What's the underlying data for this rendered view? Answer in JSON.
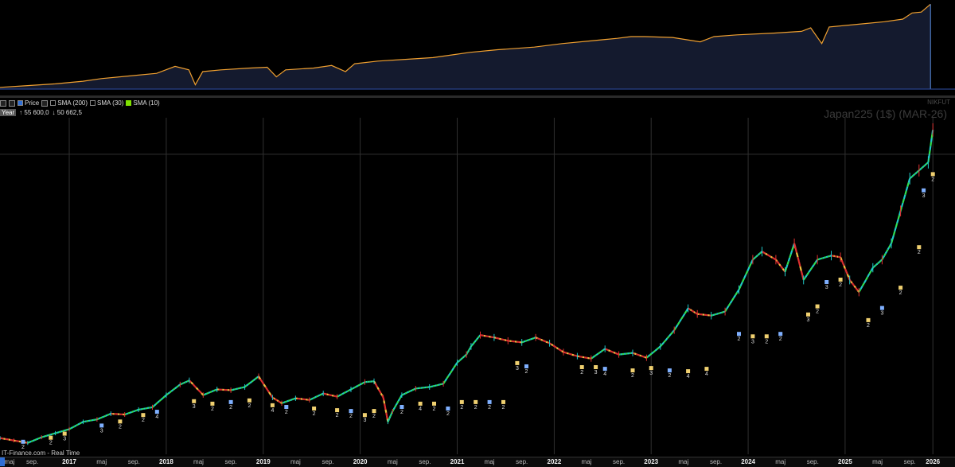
{
  "chart_data": [
    {
      "type": "area",
      "title": "",
      "xlabel": "",
      "ylabel": "",
      "grid": false,
      "colors": {
        "line": "#f0a030",
        "line_alt": "#5a8ee0",
        "fill": "#141a2e",
        "baseline": "#2f4fa8"
      },
      "x_range": [
        2016.0,
        2026.15
      ],
      "y_range": [
        0,
        1
      ],
      "points": [
        [
          2016.0,
          0.02
        ],
        [
          2016.3,
          0.04
        ],
        [
          2016.6,
          0.06
        ],
        [
          2016.9,
          0.09
        ],
        [
          2017.1,
          0.12
        ],
        [
          2017.4,
          0.15
        ],
        [
          2017.7,
          0.18
        ],
        [
          2017.9,
          0.26
        ],
        [
          2018.05,
          0.22
        ],
        [
          2018.12,
          0.05
        ],
        [
          2018.2,
          0.2
        ],
        [
          2018.4,
          0.22
        ],
        [
          2018.7,
          0.24
        ],
        [
          2018.9,
          0.25
        ],
        [
          2019.0,
          0.14
        ],
        [
          2019.1,
          0.22
        ],
        [
          2019.4,
          0.24
        ],
        [
          2019.6,
          0.27
        ],
        [
          2019.75,
          0.2
        ],
        [
          2019.85,
          0.29
        ],
        [
          2020.1,
          0.32
        ],
        [
          2020.4,
          0.34
        ],
        [
          2020.7,
          0.36
        ],
        [
          2020.9,
          0.39
        ],
        [
          2021.1,
          0.42
        ],
        [
          2021.4,
          0.45
        ],
        [
          2021.8,
          0.48
        ],
        [
          2022.1,
          0.52
        ],
        [
          2022.4,
          0.55
        ],
        [
          2022.7,
          0.58
        ],
        [
          2022.85,
          0.6
        ],
        [
          2023.0,
          0.6
        ],
        [
          2023.3,
          0.59
        ],
        [
          2023.6,
          0.54
        ],
        [
          2023.75,
          0.6
        ],
        [
          2024.0,
          0.62
        ],
        [
          2024.4,
          0.64
        ],
        [
          2024.7,
          0.66
        ],
        [
          2024.8,
          0.7
        ],
        [
          2024.92,
          0.52
        ],
        [
          2025.0,
          0.71
        ],
        [
          2025.3,
          0.74
        ],
        [
          2025.6,
          0.77
        ],
        [
          2025.8,
          0.8
        ],
        [
          2025.9,
          0.87
        ],
        [
          2026.0,
          0.88
        ],
        [
          2026.1,
          0.97
        ]
      ]
    },
    {
      "type": "candlestick",
      "title": "Japan225 (1$) (MAR-26)",
      "symbol": "NIKFUT",
      "xlabel": "",
      "ylabel": "",
      "grid": true,
      "legend": {
        "placement": "top-left",
        "items": [
          {
            "label": "Price",
            "checked": true,
            "color": "#2f6fd6"
          },
          {
            "label": "SMA (200)",
            "checked": false,
            "color": "#111111"
          },
          {
            "label": "SMA (30)",
            "checked": false,
            "color": "#111111"
          },
          {
            "label": "SMA (10)",
            "checked": true,
            "color": "#7fe000"
          }
        ]
      },
      "range": {
        "period": "Year",
        "high": "55 600,0",
        "low": "50 662,5"
      },
      "colors": {
        "up": "#20c8c8",
        "down": "#e03030",
        "mid": "#f0c040",
        "grid": "#303030"
      },
      "x_range": [
        2016.0,
        2026.15
      ],
      "y_range": [
        14500,
        56000
      ],
      "series": [
        {
          "name": "Price",
          "x": [
            2016.0,
            2016.15,
            2016.3,
            2016.45,
            2016.6,
            2016.75,
            2016.9,
            2017.05,
            2017.2,
            2017.35,
            2017.5,
            2017.65,
            2017.8,
            2017.95,
            2018.05,
            2018.2,
            2018.35,
            2018.5,
            2018.65,
            2018.8,
            2018.95,
            2019.05,
            2019.2,
            2019.35,
            2019.5,
            2019.65,
            2019.8,
            2019.95,
            2020.05,
            2020.15,
            2020.2,
            2020.25,
            2020.35,
            2020.5,
            2020.65,
            2020.8,
            2020.95,
            2021.05,
            2021.1,
            2021.2,
            2021.35,
            2021.5,
            2021.65,
            2021.8,
            2021.95,
            2022.1,
            2022.25,
            2022.4,
            2022.55,
            2022.7,
            2022.85,
            2023.0,
            2023.15,
            2023.3,
            2023.45,
            2023.55,
            2023.7,
            2023.85,
            2024.0,
            2024.15,
            2024.25,
            2024.4,
            2024.5,
            2024.6,
            2024.7,
            2024.85,
            2025.0,
            2025.1,
            2025.2,
            2025.3,
            2025.45,
            2025.55,
            2025.65,
            2025.75,
            2025.85,
            2025.95,
            2026.05,
            2026.1
          ],
          "values": [
            16500,
            16200,
            15900,
            16600,
            17100,
            17600,
            18500,
            18800,
            19500,
            19400,
            20000,
            20300,
            21800,
            23100,
            23600,
            21800,
            22500,
            22400,
            22800,
            24100,
            21500,
            20800,
            21400,
            21200,
            22000,
            21600,
            22500,
            23400,
            23500,
            21500,
            18500,
            19800,
            21800,
            22600,
            22800,
            23200,
            25800,
            26800,
            27800,
            29200,
            28900,
            28500,
            28300,
            28900,
            28200,
            27100,
            26600,
            26300,
            27500,
            26800,
            27000,
            26400,
            27800,
            29800,
            32500,
            31800,
            31600,
            32100,
            34800,
            38500,
            39500,
            38500,
            37000,
            40500,
            36000,
            38500,
            39000,
            38800,
            36000,
            34500,
            37500,
            38500,
            40500,
            44500,
            48500,
            49500,
            50500,
            54500
          ]
        }
      ],
      "x_tick_labels": [
        {
          "x": 2016.0,
          "label": "maj",
          "year": false
        },
        {
          "x": 2016.35,
          "label": "sep.",
          "year": false
        },
        {
          "x": 2016.75,
          "label": "2017",
          "year": true
        },
        {
          "x": 2017.1,
          "label": "maj",
          "year": false
        },
        {
          "x": 2017.45,
          "label": "sep.",
          "year": false
        },
        {
          "x": 2017.8,
          "label": "2018",
          "year": true
        },
        {
          "x": 2018.15,
          "label": "maj",
          "year": false
        },
        {
          "x": 2018.5,
          "label": "sep.",
          "year": false
        },
        {
          "x": 2018.85,
          "label": "2019",
          "year": true
        },
        {
          "x": 2019.2,
          "label": "maj",
          "year": false
        },
        {
          "x": 2019.55,
          "label": "sep.",
          "year": false
        },
        {
          "x": 2019.9,
          "label": "2020",
          "year": true
        },
        {
          "x": 2020.25,
          "label": "maj",
          "year": false
        },
        {
          "x": 2020.6,
          "label": "sep.",
          "year": false
        },
        {
          "x": 2020.95,
          "label": "2021",
          "year": true
        },
        {
          "x": 2021.3,
          "label": "maj",
          "year": false
        },
        {
          "x": 2021.65,
          "label": "sep.",
          "year": false
        },
        {
          "x": 2022.0,
          "label": "2022",
          "year": true
        },
        {
          "x": 2022.35,
          "label": "maj",
          "year": false
        },
        {
          "x": 2022.7,
          "label": "sep.",
          "year": false
        },
        {
          "x": 2023.05,
          "label": "2023",
          "year": true
        },
        {
          "x": 2023.4,
          "label": "maj",
          "year": false
        },
        {
          "x": 2023.75,
          "label": "sep.",
          "year": false
        },
        {
          "x": 2024.1,
          "label": "2024",
          "year": true
        },
        {
          "x": 2024.45,
          "label": "maj",
          "year": false
        },
        {
          "x": 2024.8,
          "label": "sep.",
          "year": false
        },
        {
          "x": 2025.15,
          "label": "2025",
          "year": true
        },
        {
          "x": 2025.5,
          "label": "maj",
          "year": false
        },
        {
          "x": 2025.85,
          "label": "sep.",
          "year": false
        },
        {
          "x": 2026.1,
          "label": "2026",
          "year": true
        }
      ],
      "annotations": [
        {
          "x": 2016.25,
          "y": 15500,
          "label": "2"
        },
        {
          "x": 2016.55,
          "y": 16000,
          "label": "2"
        },
        {
          "x": 2016.7,
          "y": 16500,
          "label": "3"
        },
        {
          "x": 2017.1,
          "y": 17500,
          "label": "3"
        },
        {
          "x": 2017.3,
          "y": 18000,
          "label": "2"
        },
        {
          "x": 2017.55,
          "y": 18800,
          "label": "2"
        },
        {
          "x": 2017.7,
          "y": 19200,
          "label": "4"
        },
        {
          "x": 2018.1,
          "y": 20500,
          "label": "3"
        },
        {
          "x": 2018.3,
          "y": 20200,
          "label": "2"
        },
        {
          "x": 2018.5,
          "y": 20400,
          "label": "2"
        },
        {
          "x": 2018.7,
          "y": 20600,
          "label": "2"
        },
        {
          "x": 2018.95,
          "y": 20000,
          "label": "4"
        },
        {
          "x": 2019.1,
          "y": 19800,
          "label": "2"
        },
        {
          "x": 2019.4,
          "y": 19600,
          "label": "2"
        },
        {
          "x": 2019.65,
          "y": 19400,
          "label": "2"
        },
        {
          "x": 2019.8,
          "y": 19300,
          "label": "2"
        },
        {
          "x": 2019.95,
          "y": 18800,
          "label": "3"
        },
        {
          "x": 2020.05,
          "y": 19300,
          "label": "2"
        },
        {
          "x": 2020.35,
          "y": 19800,
          "label": "2"
        },
        {
          "x": 2020.55,
          "y": 20200,
          "label": "4"
        },
        {
          "x": 2020.7,
          "y": 20200,
          "label": "2"
        },
        {
          "x": 2020.85,
          "y": 19600,
          "label": "2"
        },
        {
          "x": 2021.0,
          "y": 20400,
          "label": "2"
        },
        {
          "x": 2021.15,
          "y": 20400,
          "label": "2"
        },
        {
          "x": 2021.3,
          "y": 20400,
          "label": "2"
        },
        {
          "x": 2021.45,
          "y": 20400,
          "label": "2"
        },
        {
          "x": 2021.6,
          "y": 25200,
          "label": "3"
        },
        {
          "x": 2021.7,
          "y": 24800,
          "label": "2"
        },
        {
          "x": 2022.3,
          "y": 24700,
          "label": "2"
        },
        {
          "x": 2022.45,
          "y": 24700,
          "label": "3"
        },
        {
          "x": 2022.55,
          "y": 24500,
          "label": "4"
        },
        {
          "x": 2022.85,
          "y": 24300,
          "label": "2"
        },
        {
          "x": 2023.05,
          "y": 24600,
          "label": "3"
        },
        {
          "x": 2023.25,
          "y": 24300,
          "label": "2"
        },
        {
          "x": 2023.45,
          "y": 24200,
          "label": "4"
        },
        {
          "x": 2023.65,
          "y": 24500,
          "label": "4"
        },
        {
          "x": 2024.0,
          "y": 28800,
          "label": "2"
        },
        {
          "x": 2024.15,
          "y": 28500,
          "label": "3"
        },
        {
          "x": 2024.3,
          "y": 28500,
          "label": "2"
        },
        {
          "x": 2024.45,
          "y": 28800,
          "label": "2"
        },
        {
          "x": 2024.75,
          "y": 31200,
          "label": "3"
        },
        {
          "x": 2024.85,
          "y": 32200,
          "label": "2"
        },
        {
          "x": 2024.95,
          "y": 35200,
          "label": "3"
        },
        {
          "x": 2025.1,
          "y": 35500,
          "label": "2"
        },
        {
          "x": 2025.4,
          "y": 30500,
          "label": "2"
        },
        {
          "x": 2025.55,
          "y": 32000,
          "label": "3"
        },
        {
          "x": 2025.75,
          "y": 34500,
          "label": "2"
        },
        {
          "x": 2025.95,
          "y": 39500,
          "label": "2"
        },
        {
          "x": 2026.0,
          "y": 46500,
          "label": "3"
        },
        {
          "x": 2026.1,
          "y": 48500,
          "label": "2"
        }
      ]
    }
  ],
  "footer": {
    "source": "IT-Finance.com - Real Time"
  }
}
